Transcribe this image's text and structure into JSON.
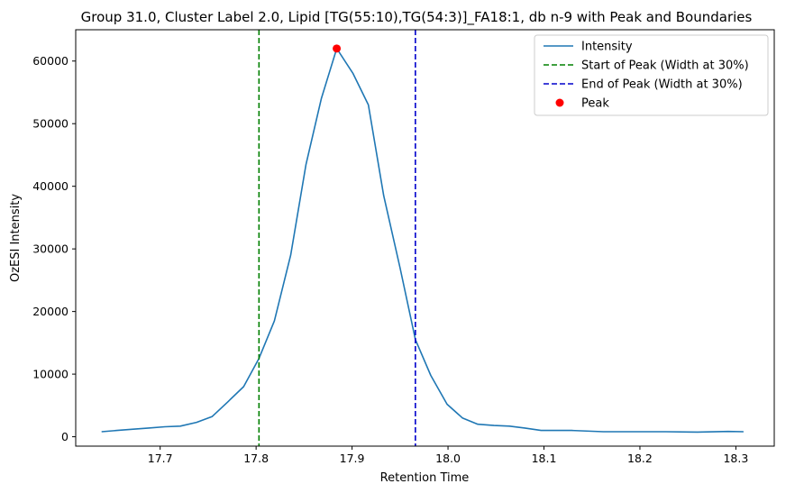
{
  "chart_data": {
    "type": "line",
    "title": "Group 31.0, Cluster Label 2.0, Lipid [TG(55:10),TG(54:3)]_FA18:1, db n-9 with Peak and Boundaries",
    "xlabel": "Retention Time",
    "ylabel": "OzESI Intensity",
    "xlim": [
      17.612,
      18.34
    ],
    "ylim": [
      -1500,
      65000
    ],
    "xticks": [
      "17.7",
      "17.8",
      "17.9",
      "18.0",
      "18.1",
      "18.2",
      "18.3"
    ],
    "xtick_values": [
      17.7,
      17.8,
      17.9,
      18.0,
      18.1,
      18.2,
      18.3
    ],
    "yticks": [
      "0",
      "10000",
      "20000",
      "30000",
      "40000",
      "50000",
      "60000"
    ],
    "ytick_values": [
      0,
      10000,
      20000,
      30000,
      40000,
      50000,
      60000
    ],
    "grid": false,
    "legend_position": "top-right",
    "series": [
      {
        "name": "Intensity",
        "color": "#1f77b4",
        "style": "solid",
        "x": [
          17.639,
          17.655,
          17.672,
          17.688,
          17.705,
          17.721,
          17.738,
          17.754,
          17.77,
          17.787,
          17.803,
          17.819,
          17.836,
          17.852,
          17.868,
          17.884,
          17.901,
          17.917,
          17.933,
          17.95,
          17.966,
          17.982,
          17.999,
          18.015,
          18.031,
          18.048,
          18.064,
          18.08,
          18.097,
          18.129,
          18.162,
          18.195,
          18.227,
          18.26,
          18.292,
          18.308
        ],
        "y": [
          800,
          1000,
          1200,
          1400,
          1600,
          1700,
          2300,
          3200,
          5500,
          8000,
          12500,
          18500,
          29000,
          43500,
          54000,
          62000,
          58000,
          53000,
          38500,
          27000,
          15500,
          9800,
          5200,
          3000,
          2000,
          1800,
          1700,
          1400,
          1000,
          1000,
          800,
          800,
          800,
          750,
          850,
          800
        ]
      },
      {
        "name": "Start of Peak (Width at 30%)",
        "color": "#008000",
        "style": "dashed",
        "x": 17.803
      },
      {
        "name": "End of Peak (Width at 30%)",
        "color": "#0000cc",
        "style": "dashed",
        "x": 17.966
      },
      {
        "name": "Peak",
        "color": "#ff0000",
        "style": "marker",
        "x": 17.884,
        "y": 62000
      }
    ]
  }
}
